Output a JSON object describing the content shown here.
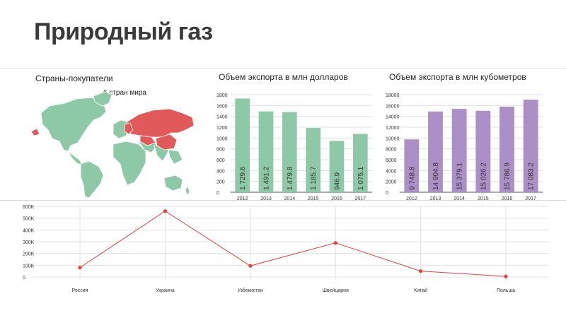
{
  "title": "Природный газ",
  "map_panel": {
    "title": "Страны-покупатели",
    "subtitle": "6 стран мира",
    "colors": {
      "buyer": "#e15959",
      "russia": "#e15959",
      "other": "#8dc9a7"
    }
  },
  "colors": {
    "green": "#8dc9a7",
    "purple": "#ad8fc7",
    "red": "#e04040",
    "grid": "#e0e0e0"
  },
  "chart_data": [
    {
      "type": "bar",
      "title": "Объем экспорта в млн долларов",
      "categories": [
        "2012",
        "2013",
        "2014",
        "2015",
        "2016",
        "2017"
      ],
      "values": [
        1729.6,
        1491.2,
        1479.8,
        1185.7,
        946.9,
        1075.1
      ],
      "value_labels": [
        "1 729.6",
        "1 491.2",
        "1 479.8",
        "1 185.7",
        "946.9",
        "1 075.1"
      ],
      "yticks": [
        "0",
        "200",
        "400",
        "600",
        "800",
        "1000",
        "1200",
        "1400",
        "1600",
        "1800"
      ],
      "ylim": [
        0,
        1800
      ],
      "color": "#8dc9a7",
      "grid": true
    },
    {
      "type": "bar",
      "title": "Объем экспорта в млн кубометров",
      "categories": [
        "2012",
        "2013",
        "2014",
        "2015",
        "2016",
        "2017"
      ],
      "values": [
        9748.8,
        14904.8,
        15379.1,
        15026.2,
        15786.9,
        17083.2
      ],
      "value_labels": [
        "9 748.8",
        "14 904.8",
        "15 379.1",
        "15 026.2",
        "15 786.9",
        "17 083.2"
      ],
      "yticks": [
        "0",
        "2000",
        "4000",
        "6000",
        "8000",
        "10000",
        "12000",
        "14000",
        "16000",
        "18000"
      ],
      "ylim": [
        0,
        18000
      ],
      "color": "#ad8fc7",
      "grid": true
    },
    {
      "type": "line",
      "categories": [
        "Россия",
        "Украина",
        "Узбекистан",
        "Швейцария",
        "Китай",
        "Польша"
      ],
      "values": [
        80000,
        560000,
        95000,
        290000,
        50000,
        5000
      ],
      "yticks": [
        "0",
        "100K",
        "200K",
        "300K",
        "400K",
        "500K",
        "600K"
      ],
      "ylim": [
        0,
        600000
      ],
      "color": "#e04040",
      "grid": true
    }
  ]
}
